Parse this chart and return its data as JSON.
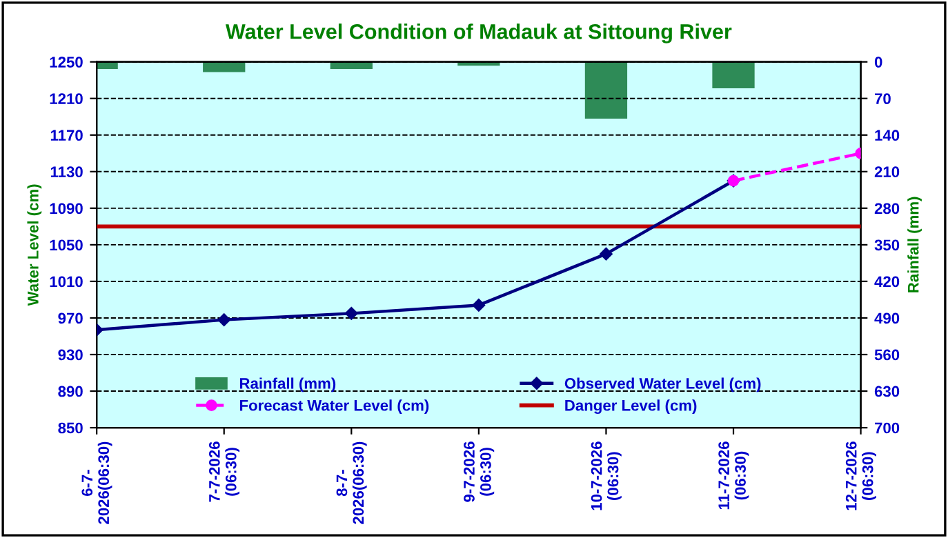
{
  "chart_data": {
    "type": "line",
    "title": "Water Level Condition of Madauk at Sittoung River",
    "xlabel": null,
    "ylabel": "Water Level (cm)",
    "y2label": "Rainfall (mm)",
    "categories": [
      "6-7-\n2026(06:30)",
      "7-7-2026\n(06:30)",
      "8-7-\n2026(06:30)",
      "9-7-2026\n(06:30)",
      "10-7-2026\n(06:30)",
      "11-7-2026\n(06:30)",
      "12-7-2026\n(06:30)"
    ],
    "series": [
      {
        "name": "Rainfall (mm)",
        "type": "bar",
        "axis": "y2",
        "color": "#2e8b57",
        "values": [
          12,
          18,
          12,
          6,
          107,
          49,
          0
        ]
      },
      {
        "name": "Observed Water Level (cm)",
        "color": "#000080",
        "marker": "diamond",
        "line_style": "solid",
        "values": [
          957,
          968,
          975,
          984,
          1040,
          1120,
          null
        ]
      },
      {
        "name": "Forecast Water Level (cm)",
        "color": "#ff00ff",
        "marker": "circle",
        "line_style": "dashed",
        "values": [
          null,
          null,
          null,
          null,
          null,
          1120,
          1150
        ]
      }
    ],
    "ref_lines": [
      {
        "axis": "y",
        "value": 1070,
        "label": "Danger Level (cm)",
        "color": "#c00000",
        "line_style": "solid"
      }
    ],
    "ylim": [
      850,
      1250
    ],
    "yticks": [
      850,
      890,
      930,
      970,
      1010,
      1050,
      1090,
      1130,
      1170,
      1210,
      1250
    ],
    "y2lim": [
      700,
      0
    ],
    "y2ticks": [
      0,
      70,
      140,
      210,
      280,
      350,
      420,
      490,
      560,
      630,
      700
    ],
    "grid": "y",
    "legend": "bottom"
  }
}
